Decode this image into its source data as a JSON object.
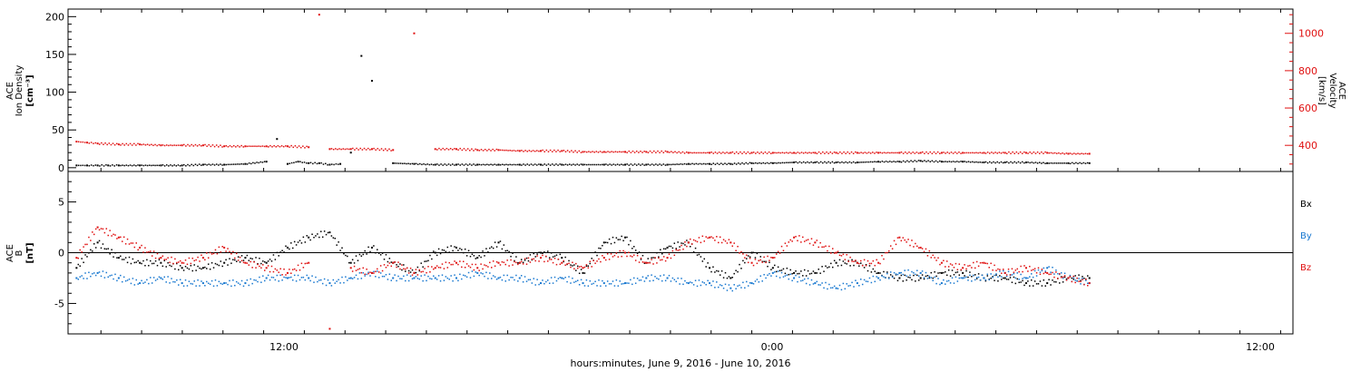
{
  "chart_data": {
    "type": "scatter",
    "xlabel": "hours:minutes, June  9, 2016 - June 10, 2016",
    "x_ticks": [
      "12:00",
      "0:00",
      "12:00"
    ],
    "panels": [
      {
        "id": "plasma",
        "ylabel_left": [
          "ACE",
          "Ion Density",
          "[cm⁻³]"
        ],
        "ylabel_right": [
          "ACE",
          "Velocity",
          "[km/s]"
        ],
        "ylim_left": [
          -5,
          210
        ],
        "yticks_left": [
          0,
          50,
          100,
          150,
          200
        ],
        "ylim_right": [
          260,
          1130
        ],
        "yticks_right": [
          400,
          600,
          800,
          1000
        ],
        "series": [
          {
            "color": "#000000",
            "axis": "left",
            "x": [
              0,
              0.5,
              1,
              1.5,
              2,
              3,
              4,
              5,
              6,
              7,
              8,
              9,
              9.5,
              10,
              10.5,
              11,
              11.5,
              12,
              12.5,
              13,
              13.5,
              14,
              15,
              16,
              17,
              18,
              19,
              20,
              21,
              22,
              23,
              24,
              25,
              26,
              27,
              28,
              29,
              30,
              31,
              32,
              33,
              34,
              35,
              36,
              37,
              38,
              39,
              40,
              41,
              42,
              43,
              44,
              45,
              46,
              47,
              48
            ],
            "y": [
              3,
              3,
              3,
              3,
              3,
              3,
              3,
              3,
              4,
              4,
              5,
              8,
              38,
              5,
              8,
              6,
              6,
              4,
              5,
              20,
              148,
              115,
              6,
              5,
              4,
              4,
              4,
              4,
              4,
              4,
              4,
              4,
              4,
              4,
              4,
              4,
              5,
              5,
              5,
              6,
              6,
              7,
              7,
              7,
              7,
              8,
              8,
              9,
              8,
              8,
              7,
              7,
              7,
              6,
              6,
              6
            ]
          },
          {
            "color": "#e01010",
            "axis": "right",
            "x": [
              0,
              0.5,
              1,
              2,
              3,
              4,
              5,
              6,
              7,
              8,
              9,
              10,
              11,
              11.5,
              12,
              13,
              14,
              15,
              16,
              17,
              18,
              19,
              20,
              21,
              22,
              23,
              24,
              25,
              26,
              27,
              28,
              29,
              30,
              31,
              32,
              33,
              34,
              35,
              36,
              37,
              38,
              39,
              40,
              41,
              42,
              43,
              44,
              45,
              46,
              47,
              48
            ],
            "y": [
              420,
              415,
              410,
              405,
              405,
              400,
              400,
              400,
              395,
              395,
              395,
              395,
              390,
              1100,
              380,
              380,
              380,
              375,
              1000,
              380,
              380,
              375,
              375,
              370,
              370,
              370,
              365,
              365,
              365,
              365,
              365,
              360,
              360,
              360,
              360,
              360,
              360,
              360,
              360,
              360,
              360,
              360,
              360,
              360,
              360,
              360,
              360,
              360,
              360,
              355,
              355
            ]
          }
        ]
      },
      {
        "id": "magnetic",
        "ylabel_left": [
          "ACE",
          "B",
          "[nT]"
        ],
        "ylim_left": [
          -8,
          8
        ],
        "yticks_left": [
          -5,
          0,
          5
        ],
        "legend": [
          "Bx",
          "By",
          "Bz"
        ],
        "series": [
          {
            "name": "Bx",
            "color": "#000000",
            "x": [
              0,
              1,
              2,
              3,
              4,
              5,
              6,
              7,
              8,
              9,
              10,
              11,
              12,
              13,
              14,
              15,
              16,
              17,
              18,
              19,
              20,
              21,
              22,
              23,
              24,
              25,
              26,
              27,
              28,
              29,
              30,
              31,
              32,
              33,
              34,
              35,
              36,
              37,
              38,
              39,
              40,
              41,
              42,
              43,
              44,
              45,
              46,
              47,
              48
            ],
            "y": [
              -1.5,
              1,
              -0.5,
              -1,
              -1,
              -1.5,
              -1.5,
              -1,
              -0.5,
              -1,
              0.5,
              1.5,
              2,
              -1,
              0.5,
              -1,
              -2,
              0,
              0.5,
              -0.5,
              1,
              -1,
              0,
              -0.5,
              -2,
              1,
              1.5,
              -1,
              0.5,
              1,
              -1.5,
              -2.5,
              0,
              -1.5,
              -2,
              -2,
              -1,
              -1,
              -2,
              -2.5,
              -2.5,
              -2,
              -2,
              -2.5,
              -2.5,
              -3,
              -3,
              -2.5,
              -2.5
            ]
          },
          {
            "name": "By",
            "color": "#1878d0",
            "x": [
              0,
              1,
              2,
              3,
              4,
              5,
              6,
              7,
              8,
              9,
              10,
              11,
              12,
              13,
              14,
              15,
              16,
              17,
              18,
              19,
              20,
              21,
              22,
              23,
              24,
              25,
              26,
              27,
              28,
              29,
              30,
              31,
              32,
              33,
              34,
              35,
              36,
              37,
              38,
              39,
              40,
              41,
              42,
              43,
              44,
              45,
              46,
              47,
              48
            ],
            "y": [
              -2.5,
              -2,
              -2.5,
              -3,
              -2.5,
              -3,
              -3,
              -3,
              -3,
              -2.5,
              -2.5,
              -2.5,
              -3,
              -2.5,
              -2,
              -2.5,
              -2.5,
              -2.5,
              -2.5,
              -2,
              -2.5,
              -2.5,
              -3,
              -2.5,
              -3,
              -3,
              -3,
              -2.5,
              -2.5,
              -3,
              -3,
              -3.5,
              -3,
              -2,
              -2.5,
              -3,
              -3.5,
              -3,
              -2.5,
              -2,
              -2,
              -3,
              -2.5,
              -2.5,
              -2,
              -2.5,
              -1.5,
              -2.5,
              -3
            ]
          },
          {
            "name": "Bz",
            "color": "#e01010",
            "x": [
              0,
              1,
              2,
              3,
              4,
              5,
              6,
              7,
              8,
              9,
              10,
              11,
              12,
              13,
              14,
              15,
              16,
              17,
              18,
              19,
              20,
              21,
              22,
              23,
              24,
              25,
              26,
              27,
              28,
              29,
              30,
              31,
              32,
              33,
              34,
              35,
              36,
              37,
              38,
              39,
              40,
              41,
              42,
              43,
              44,
              45,
              46,
              47,
              48
            ],
            "y": [
              -0.5,
              2.5,
              1.5,
              0.5,
              -0.5,
              -1,
              -0.5,
              0.5,
              -1,
              -1.5,
              -2,
              -1,
              -7.5,
              -1.5,
              -2,
              -1,
              -2,
              -1.5,
              -1,
              -1.5,
              -1,
              -1,
              -0.5,
              -1,
              -1.5,
              -0.5,
              0,
              -1,
              -0.5,
              1,
              1.5,
              1,
              -1,
              -0.5,
              1.5,
              1,
              0,
              -1,
              -1,
              1.5,
              0.5,
              -1,
              -1.5,
              -1,
              -2,
              -1.5,
              -2,
              -2.5,
              -3
            ]
          }
        ]
      }
    ]
  }
}
